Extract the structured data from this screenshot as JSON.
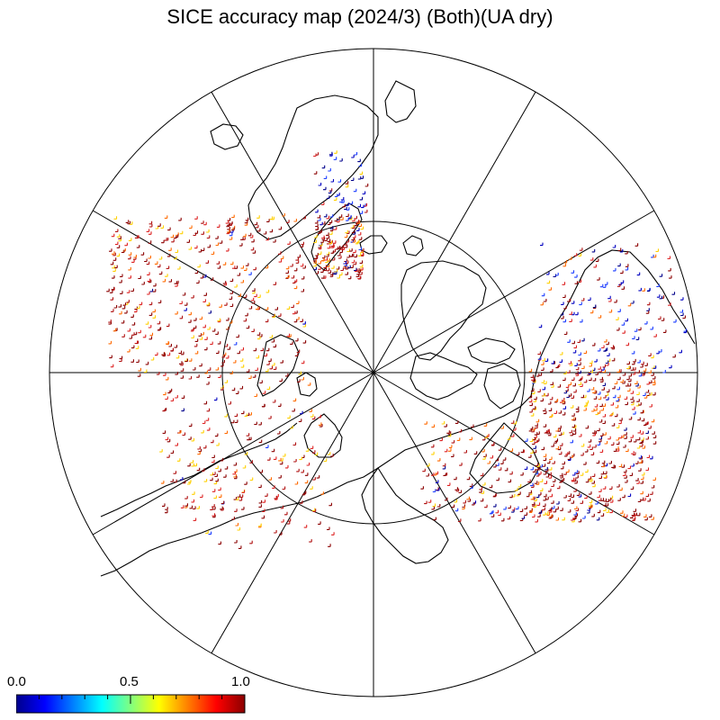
{
  "title": "SICE accuracy map (2024/3) (Both)(UA dry)",
  "colorbar": {
    "tick_labels": [
      "0.0",
      "0.5",
      "1.0"
    ],
    "colors": [
      "#00008b",
      "#0000ff",
      "#0080ff",
      "#00ffff",
      "#80ff80",
      "#ffff00",
      "#ff8000",
      "#ff0000",
      "#8b0000"
    ]
  },
  "map": {
    "projection": "north polar stereographic",
    "outline_color": "#000000",
    "marker": "+",
    "dominant_marker_color": "#8b0000"
  }
}
